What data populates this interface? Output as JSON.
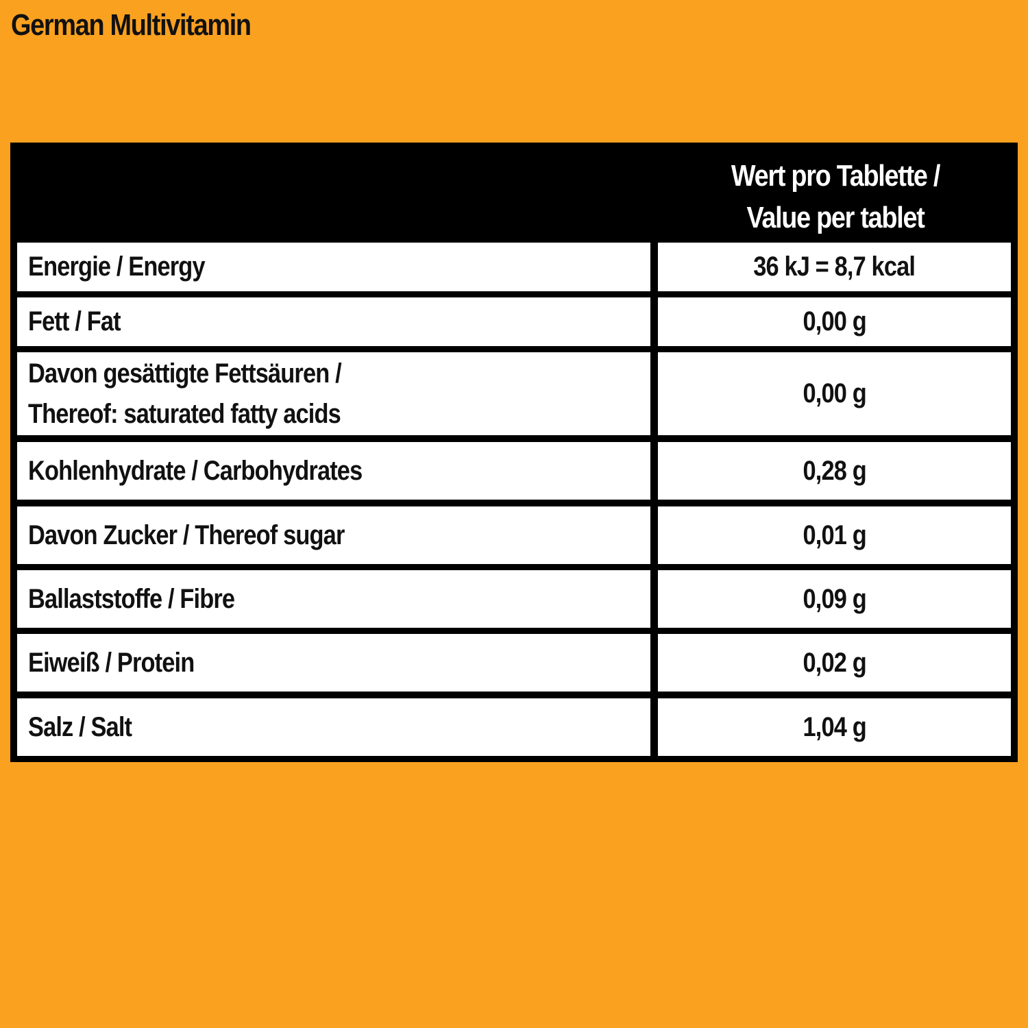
{
  "title": "German Multivitamin",
  "table": {
    "header": {
      "value_line1": "Wert pro Tablette /",
      "value_line2": "Value per tablet"
    },
    "rows": [
      {
        "label": [
          "Energie / Energy"
        ],
        "value": "36 kJ = 8,7 kcal"
      },
      {
        "label": [
          "Fett / Fat"
        ],
        "value": "0,00 g"
      },
      {
        "label": [
          "Davon gesättigte Fettsäuren /",
          "Thereof: saturated fatty acids"
        ],
        "value": "0,00 g"
      },
      {
        "label": [
          "Kohlenhydrate / Carbohydrates"
        ],
        "value": "0,28 g"
      },
      {
        "label": [
          "Davon Zucker / Thereof sugar"
        ],
        "value": "0,01 g"
      },
      {
        "label": [
          "Ballaststoffe / Fibre"
        ],
        "value": "0,09 g"
      },
      {
        "label": [
          "Eiweiß / Protein"
        ],
        "value": "0,02 g"
      },
      {
        "label": [
          "Salz / Salt"
        ],
        "value": "1,04 g"
      }
    ]
  },
  "colors": {
    "background": "#fba120",
    "table_border": "#000000",
    "cell": "#ffffff",
    "text": "#111111",
    "header_text": "#ffffff"
  }
}
